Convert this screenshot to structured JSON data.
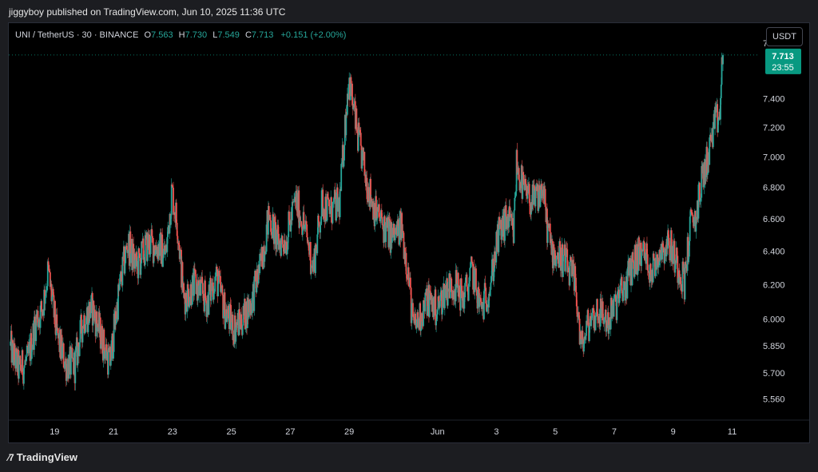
{
  "header": {
    "published_text": "jiggyboy published on TradingView.com, Jun 10, 2025 11:36 UTC"
  },
  "legend": {
    "symbol": "UNI / TetherUS · 30 · BINANCE",
    "open_key": "O",
    "open": "7.563",
    "high_key": "H",
    "high": "7.730",
    "low_key": "L",
    "low": "7.549",
    "close_key": "C",
    "close": "7.713",
    "change": "+0.151 (+2.00%)"
  },
  "currency_button": "USDT",
  "price_tag": {
    "price": "7.713",
    "countdown": "23:55"
  },
  "footer": {
    "brand": "TradingView"
  },
  "colors": {
    "up": "#26a69a",
    "down": "#ef5350",
    "background": "#000000",
    "tag": "#089981"
  },
  "chart_data": {
    "type": "candlestick",
    "scale": "log",
    "ylim": [
      5.45,
      7.95
    ],
    "y_ticks": [
      "7.800",
      "7.400",
      "7.200",
      "7.000",
      "6.800",
      "6.600",
      "6.400",
      "6.200",
      "6.000",
      "5.850",
      "5.700",
      "5.560"
    ],
    "y_tick_values": [
      7.8,
      7.4,
      7.2,
      7.0,
      6.8,
      6.6,
      6.4,
      6.2,
      6.0,
      5.85,
      5.7,
      5.56
    ],
    "x_ticks": [
      "19",
      "21",
      "23",
      "25",
      "27",
      "29",
      "Jun",
      "3",
      "5",
      "7",
      "9",
      "11"
    ],
    "x_tick_days": [
      1.5,
      3.5,
      5.5,
      7.5,
      9.5,
      11.5,
      14.5,
      16.5,
      18.5,
      20.5,
      22.5,
      24.5
    ],
    "days_span": [
      0,
      25.3
    ],
    "series_path": [
      [
        0.0,
        5.85
      ],
      [
        0.3,
        5.72
      ],
      [
        0.6,
        5.76
      ],
      [
        0.9,
        6.0
      ],
      [
        1.1,
        6.05
      ],
      [
        1.3,
        6.28
      ],
      [
        1.6,
        5.9
      ],
      [
        1.9,
        5.75
      ],
      [
        2.2,
        5.74
      ],
      [
        2.5,
        6.0
      ],
      [
        2.8,
        6.06
      ],
      [
        3.1,
        5.9
      ],
      [
        3.4,
        5.75
      ],
      [
        3.7,
        6.15
      ],
      [
        4.0,
        6.45
      ],
      [
        4.3,
        6.3
      ],
      [
        4.7,
        6.45
      ],
      [
        5.1,
        6.42
      ],
      [
        5.3,
        6.38
      ],
      [
        5.5,
        6.78
      ],
      [
        5.7,
        6.55
      ],
      [
        5.9,
        6.12
      ],
      [
        6.3,
        6.2
      ],
      [
        6.7,
        6.1
      ],
      [
        7.0,
        6.25
      ],
      [
        7.3,
        6.05
      ],
      [
        7.6,
        5.95
      ],
      [
        7.9,
        6.0
      ],
      [
        8.2,
        6.1
      ],
      [
        8.5,
        6.3
      ],
      [
        8.8,
        6.62
      ],
      [
        9.1,
        6.45
      ],
      [
        9.4,
        6.48
      ],
      [
        9.7,
        6.72
      ],
      [
        10.0,
        6.55
      ],
      [
        10.3,
        6.3
      ],
      [
        10.6,
        6.7
      ],
      [
        10.9,
        6.65
      ],
      [
        11.2,
        6.7
      ],
      [
        11.5,
        7.55
      ],
      [
        11.8,
        7.15
      ],
      [
        12.1,
        6.85
      ],
      [
        12.4,
        6.65
      ],
      [
        12.7,
        6.55
      ],
      [
        13.0,
        6.48
      ],
      [
        13.3,
        6.55
      ],
      [
        13.5,
        6.3
      ],
      [
        13.7,
        5.95
      ],
      [
        13.9,
        6.0
      ],
      [
        14.2,
        6.12
      ],
      [
        14.5,
        6.05
      ],
      [
        14.8,
        6.18
      ],
      [
        15.1,
        6.2
      ],
      [
        15.4,
        6.12
      ],
      [
        15.7,
        6.28
      ],
      [
        16.0,
        6.05
      ],
      [
        16.3,
        6.2
      ],
      [
        16.6,
        6.5
      ],
      [
        16.9,
        6.6
      ],
      [
        17.1,
        6.5
      ],
      [
        17.2,
        6.95
      ],
      [
        17.5,
        6.75
      ],
      [
        17.8,
        6.7
      ],
      [
        18.1,
        6.8
      ],
      [
        18.2,
        6.6
      ],
      [
        18.4,
        6.4
      ],
      [
        18.8,
        6.35
      ],
      [
        19.2,
        6.2
      ],
      [
        19.4,
        5.83
      ],
      [
        19.7,
        6.0
      ],
      [
        20.0,
        6.05
      ],
      [
        20.3,
        5.98
      ],
      [
        20.6,
        6.1
      ],
      [
        20.9,
        6.2
      ],
      [
        21.2,
        6.35
      ],
      [
        21.5,
        6.4
      ],
      [
        21.8,
        6.28
      ],
      [
        22.1,
        6.42
      ],
      [
        22.4,
        6.45
      ],
      [
        22.7,
        6.3
      ],
      [
        22.9,
        6.22
      ],
      [
        23.1,
        6.55
      ],
      [
        23.3,
        6.62
      ],
      [
        23.5,
        6.85
      ],
      [
        23.7,
        7.0
      ],
      [
        23.9,
        7.2
      ],
      [
        24.1,
        7.28
      ],
      [
        24.2,
        7.713
      ]
    ]
  }
}
